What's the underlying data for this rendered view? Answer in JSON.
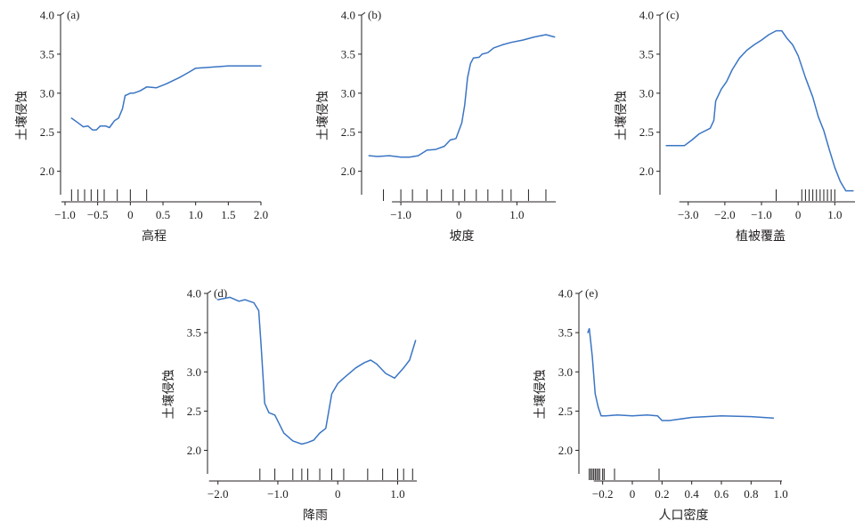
{
  "colors": {
    "line": "#3a75c4",
    "axis": "#231f20"
  },
  "chart_data": [
    {
      "type": "line",
      "panel_label": "(a)",
      "xlabel": "高程",
      "ylabel": "土壤侵蚀",
      "xlim": [
        -1.0,
        2.0
      ],
      "ylim": [
        1.7,
        4.0
      ],
      "xticks": [
        -1.0,
        -0.5,
        0,
        0.5,
        1.0,
        1.5,
        2.0
      ],
      "xtick_labels": [
        "−1.0",
        "−0.5",
        "0",
        "0.5",
        "1.0",
        "1.5",
        "2.0"
      ],
      "yticks": [
        2.0,
        2.5,
        3.0,
        3.5,
        4.0
      ],
      "ytick_labels": [
        "2.0",
        "2.5",
        "3.0",
        "3.5",
        "4.0"
      ],
      "rug": [
        -0.9,
        -0.8,
        -0.7,
        -0.6,
        -0.5,
        -0.4,
        -0.2,
        0,
        0.25
      ],
      "x": [
        -0.9,
        -0.8,
        -0.72,
        -0.65,
        -0.58,
        -0.52,
        -0.46,
        -0.38,
        -0.32,
        -0.24,
        -0.18,
        -0.12,
        -0.08,
        -0.05,
        0.0,
        0.05,
        0.15,
        0.25,
        0.4,
        0.55,
        0.75,
        0.9,
        1.0,
        1.2,
        1.5,
        1.8,
        2.0
      ],
      "y": [
        2.68,
        2.62,
        2.57,
        2.58,
        2.53,
        2.53,
        2.58,
        2.58,
        2.56,
        2.65,
        2.68,
        2.8,
        2.97,
        2.98,
        3.0,
        3.0,
        3.03,
        3.08,
        3.07,
        3.12,
        3.2,
        3.27,
        3.32,
        3.33,
        3.35,
        3.35,
        3.35
      ]
    },
    {
      "type": "line",
      "panel_label": "(b)",
      "xlabel": "坡度",
      "ylabel": "土壤侵蚀",
      "xlim": [
        -1.6,
        1.7
      ],
      "ylim": [
        1.7,
        4.0
      ],
      "xticks": [
        -1.0,
        0,
        1.0
      ],
      "xtick_labels": [
        "−1.0",
        "0",
        "1.0"
      ],
      "yticks": [
        2.0,
        2.5,
        3.0,
        3.5,
        4.0
      ],
      "ytick_labels": [
        "2.0",
        "2.5",
        "3.0",
        "3.5",
        "4.0"
      ],
      "rug": [
        -1.3,
        -1.0,
        -0.8,
        -0.55,
        -0.3,
        -0.1,
        0.1,
        0.3,
        0.5,
        0.75,
        0.9,
        1.2,
        1.5
      ],
      "x": [
        -1.55,
        -1.4,
        -1.2,
        -1.0,
        -0.85,
        -0.7,
        -0.55,
        -0.4,
        -0.25,
        -0.15,
        -0.05,
        0.05,
        0.1,
        0.15,
        0.2,
        0.25,
        0.35,
        0.4,
        0.5,
        0.6,
        0.75,
        0.9,
        1.1,
        1.3,
        1.5,
        1.65
      ],
      "y": [
        2.2,
        2.19,
        2.2,
        2.18,
        2.18,
        2.2,
        2.27,
        2.28,
        2.32,
        2.4,
        2.42,
        2.62,
        2.85,
        3.2,
        3.38,
        3.45,
        3.46,
        3.5,
        3.52,
        3.58,
        3.62,
        3.65,
        3.68,
        3.72,
        3.75,
        3.72
      ]
    },
    {
      "type": "line",
      "panel_label": "(c)",
      "xlabel": "植被覆盖",
      "ylabel": "土壤侵蚀",
      "xlim": [
        -3.65,
        1.6
      ],
      "ylim": [
        1.7,
        4.0
      ],
      "xticks": [
        -3.0,
        -2.0,
        -1.0,
        0,
        1.0
      ],
      "xtick_labels": [
        "−3.0",
        "−2.0",
        "−1.0",
        "0",
        "1.0"
      ],
      "yticks": [
        2.0,
        2.5,
        3.0,
        3.5,
        4.0
      ],
      "ytick_labels": [
        "2.0",
        "2.5",
        "3.0",
        "3.5",
        "4.0"
      ],
      "rug": [
        -0.6,
        0.1,
        0.2,
        0.3,
        0.4,
        0.5,
        0.6,
        0.7,
        0.8,
        0.9,
        1.0
      ],
      "x": [
        -3.6,
        -3.1,
        -2.9,
        -2.7,
        -2.4,
        -2.3,
        -2.25,
        -2.1,
        -1.95,
        -1.8,
        -1.6,
        -1.4,
        -1.2,
        -1.0,
        -0.8,
        -0.6,
        -0.45,
        -0.3,
        -0.15,
        0.0,
        0.2,
        0.4,
        0.55,
        0.7,
        0.85,
        1.0,
        1.15,
        1.3,
        1.5
      ],
      "y": [
        2.33,
        2.33,
        2.4,
        2.48,
        2.55,
        2.65,
        2.9,
        3.05,
        3.15,
        3.3,
        3.45,
        3.55,
        3.62,
        3.68,
        3.75,
        3.8,
        3.8,
        3.7,
        3.62,
        3.48,
        3.2,
        2.95,
        2.7,
        2.52,
        2.28,
        2.05,
        1.87,
        1.75,
        1.75
      ]
    },
    {
      "type": "line",
      "panel_label": "(d)",
      "xlabel": "降雨",
      "ylabel": "土壤侵蚀",
      "xlim": [
        -2.1,
        1.35
      ],
      "ylim": [
        1.7,
        4.0
      ],
      "xticks": [
        -2.0,
        -1.0,
        0,
        1.0
      ],
      "xtick_labels": [
        "−2.0",
        "−1.0",
        "0",
        "1.0"
      ],
      "yticks": [
        2.0,
        2.5,
        3.0,
        3.5,
        4.0
      ],
      "ytick_labels": [
        "2.0",
        "2.5",
        "3.0",
        "3.5",
        "4.0"
      ],
      "rug": [
        -1.3,
        -1.05,
        -0.75,
        -0.6,
        -0.5,
        -0.3,
        -0.1,
        0.1,
        0.5,
        0.75,
        1.0,
        1.1,
        1.25
      ],
      "x": [
        -2.0,
        -1.8,
        -1.65,
        -1.55,
        -1.4,
        -1.32,
        -1.28,
        -1.22,
        -1.15,
        -1.05,
        -0.9,
        -0.75,
        -0.6,
        -0.5,
        -0.4,
        -0.3,
        -0.2,
        -0.1,
        0.0,
        0.1,
        0.3,
        0.45,
        0.55,
        0.65,
        0.8,
        0.95,
        1.1,
        1.2,
        1.3
      ],
      "y": [
        3.92,
        3.95,
        3.9,
        3.92,
        3.88,
        3.78,
        3.35,
        2.6,
        2.48,
        2.45,
        2.22,
        2.12,
        2.08,
        2.1,
        2.13,
        2.22,
        2.28,
        2.72,
        2.85,
        2.92,
        3.05,
        3.12,
        3.15,
        3.1,
        2.98,
        2.92,
        3.05,
        3.15,
        3.4
      ]
    },
    {
      "type": "line",
      "panel_label": "(e)",
      "xlabel": "人口密度",
      "ylabel": "土壤侵蚀",
      "xlim": [
        -0.33,
        1.02
      ],
      "ylim": [
        1.7,
        4.0
      ],
      "xticks": [
        -0.2,
        0,
        0.2,
        0.4,
        0.6,
        0.8,
        1.0
      ],
      "xtick_labels": [
        "−0.2",
        "0",
        "0.2",
        "0.4",
        "0.6",
        "0.8",
        "1.0"
      ],
      "yticks": [
        2.0,
        2.5,
        3.0,
        3.5,
        4.0
      ],
      "ytick_labels": [
        "2.0",
        "2.5",
        "3.0",
        "3.5",
        "4.0"
      ],
      "rug": [
        -0.29,
        -0.28,
        -0.27,
        -0.26,
        -0.25,
        -0.24,
        -0.23,
        -0.22,
        -0.2,
        -0.19,
        -0.12,
        0.18
      ],
      "x": [
        -0.3,
        -0.29,
        -0.27,
        -0.25,
        -0.23,
        -0.21,
        -0.18,
        -0.1,
        0.0,
        0.1,
        0.17,
        0.2,
        0.25,
        0.4,
        0.6,
        0.8,
        0.95
      ],
      "y": [
        3.5,
        3.55,
        3.2,
        2.72,
        2.55,
        2.44,
        2.44,
        2.45,
        2.44,
        2.45,
        2.44,
        2.38,
        2.38,
        2.42,
        2.44,
        2.43,
        2.41
      ]
    }
  ]
}
